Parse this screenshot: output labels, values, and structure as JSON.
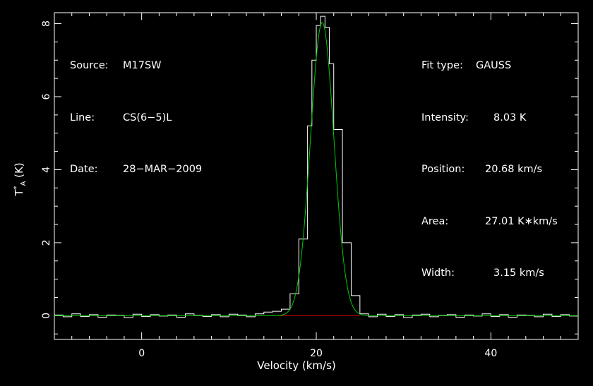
{
  "header": {
    "source_label": "Source:",
    "source_value": "M17SW",
    "line_label": "Line:",
    "line_value": "CS(6−5)L",
    "date_label": "Date:",
    "date_value": "28−MAR−2009"
  },
  "fit": {
    "type_label": "Fit type:",
    "type_value": "GAUSS",
    "intensity_label": "Intensity:",
    "intensity_value": "8.03 K",
    "position_label": "Position:",
    "position_value": "20.68 km/s",
    "area_label": "Area:",
    "area_value": "27.01 K∗km/s",
    "width_label": "Width:",
    "width_value": "3.15 km/s"
  },
  "colors": {
    "background": "#000000",
    "spectrum": "#ffffff",
    "fit_curve": "#00cc00",
    "baseline": "#cc0000",
    "frame": "#ffffff"
  },
  "chart_data": {
    "type": "line",
    "xlabel": "Velocity (km/s)",
    "ylabel_main": "T",
    "ylabel_sup": "*",
    "ylabel_sub": "A",
    "ylabel_unit": " (K)",
    "xlim": [
      -10,
      50
    ],
    "ylim": [
      -0.65,
      8.3
    ],
    "x_ticks": [
      0,
      20,
      40
    ],
    "y_ticks": [
      0,
      2,
      4,
      6,
      8
    ],
    "x_tick_labels": [
      "0",
      "20",
      "40"
    ],
    "y_tick_labels": [
      "0",
      "2",
      "4",
      "6",
      "8"
    ],
    "series": [
      {
        "kind": "spectrum",
        "x": [
          -10,
          -9,
          -8,
          -7,
          -6,
          -5,
          -4,
          -3,
          -2,
          -1,
          0,
          1,
          2,
          3,
          4,
          5,
          6,
          7,
          8,
          9,
          10,
          11,
          12,
          13,
          14,
          15,
          16,
          17,
          18,
          19,
          19.5,
          20,
          20.5,
          21,
          21.5,
          22,
          23,
          24,
          25,
          26,
          27,
          28,
          29,
          30,
          31,
          32,
          33,
          34,
          35,
          36,
          37,
          38,
          39,
          40,
          41,
          42,
          43,
          44,
          45,
          46,
          47,
          48,
          49,
          50
        ],
        "values": [
          0.02,
          -0.03,
          0.05,
          -0.02,
          0.03,
          -0.04,
          0.02,
          0.01,
          -0.05,
          0.04,
          -0.02,
          0.03,
          -0.01,
          0.02,
          -0.04,
          0.05,
          0.01,
          -0.02,
          0.03,
          -0.03,
          0.04,
          0.02,
          -0.03,
          0.05,
          0.1,
          0.12,
          0.18,
          0.6,
          2.1,
          5.2,
          7.0,
          7.95,
          8.2,
          7.9,
          6.9,
          5.1,
          2.0,
          0.55,
          0.05,
          -0.03,
          0.04,
          -0.02,
          0.03,
          -0.05,
          0.02,
          0.04,
          -0.03,
          0.01,
          0.03,
          -0.04,
          0.02,
          -0.01,
          0.05,
          -0.02,
          0.03,
          -0.04,
          0.02,
          0.01,
          -0.03,
          0.04,
          -0.02,
          0.03,
          -0.01,
          0.02
        ]
      },
      {
        "kind": "gaussian_fit",
        "peak": 8.03,
        "center": 20.68,
        "fwhm": 3.15
      },
      {
        "kind": "baseline",
        "x": [
          16,
          25
        ],
        "values": [
          0,
          0
        ]
      }
    ]
  }
}
